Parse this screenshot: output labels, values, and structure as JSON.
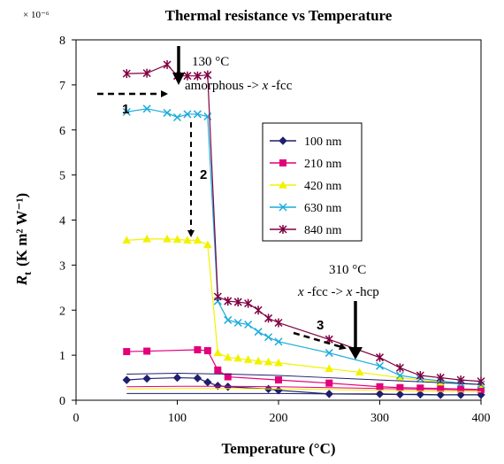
{
  "chart_data": {
    "type": "line",
    "title": "Thermal resistance vs Temperature",
    "xlabel": "Temperature (°C)",
    "ylabel_main": "R",
    "ylabel_sub": "t",
    "ylabel_unit": "(K m² W⁻¹)",
    "y_multiplier": "× 10⁻⁶",
    "xlim": [
      0,
      400
    ],
    "ylim": [
      0,
      8
    ],
    "xticks": [
      0,
      100,
      200,
      300,
      400
    ],
    "yticks": [
      0,
      1,
      2,
      3,
      4,
      5,
      6,
      7,
      8
    ],
    "grid": false,
    "legend_position": "center-right",
    "series": [
      {
        "name": "100 nm",
        "color": "#1f1f6e",
        "marker": "diamond",
        "x": [
          50,
          70,
          100,
          120,
          130,
          140,
          150,
          190,
          200,
          250,
          300,
          320,
          340,
          360,
          380,
          400
        ],
        "y": [
          0.45,
          0.48,
          0.5,
          0.49,
          0.4,
          0.32,
          0.3,
          0.25,
          0.22,
          0.14,
          0.14,
          0.13,
          0.13,
          0.12,
          0.12,
          0.12
        ]
      },
      {
        "name": "210 nm",
        "color": "#e2007a",
        "marker": "square",
        "x": [
          50,
          70,
          120,
          130,
          140,
          150,
          200,
          250,
          300,
          320,
          340,
          360,
          380,
          400
        ],
        "y": [
          1.08,
          1.09,
          1.12,
          1.1,
          0.67,
          0.52,
          0.45,
          0.38,
          0.3,
          0.28,
          0.27,
          0.26,
          0.25,
          0.24
        ]
      },
      {
        "name": "420 nm",
        "color": "#f2f200",
        "marker": "triangle",
        "x": [
          50,
          70,
          90,
          100,
          110,
          120,
          130,
          140,
          150,
          160,
          170,
          180,
          190,
          200,
          250,
          280,
          320,
          360,
          400
        ],
        "y": [
          3.55,
          3.58,
          3.58,
          3.57,
          3.55,
          3.55,
          3.45,
          1.05,
          0.95,
          0.93,
          0.9,
          0.87,
          0.85,
          0.83,
          0.7,
          0.62,
          0.5,
          0.4,
          0.35
        ]
      },
      {
        "name": "630 nm",
        "color": "#1cacdc",
        "marker": "x",
        "x": [
          50,
          70,
          90,
          100,
          110,
          120,
          130,
          140,
          150,
          160,
          170,
          180,
          190,
          200,
          250,
          300,
          320,
          340,
          360,
          380,
          400
        ],
        "y": [
          6.4,
          6.47,
          6.38,
          6.28,
          6.35,
          6.35,
          6.3,
          2.2,
          1.78,
          1.72,
          1.68,
          1.52,
          1.4,
          1.3,
          1.05,
          0.76,
          0.55,
          0.48,
          0.43,
          0.38,
          0.35
        ]
      },
      {
        "name": "840 nm",
        "color": "#800040",
        "marker": "star",
        "x": [
          50,
          70,
          90,
          100,
          110,
          120,
          130,
          140,
          150,
          160,
          170,
          180,
          190,
          200,
          250,
          300,
          320,
          340,
          360,
          380,
          400
        ],
        "y": [
          7.25,
          7.26,
          7.45,
          7.2,
          7.2,
          7.2,
          7.22,
          2.3,
          2.2,
          2.18,
          2.15,
          2.0,
          1.82,
          1.72,
          1.35,
          0.95,
          0.72,
          0.55,
          0.5,
          0.45,
          0.42
        ]
      },
      {
        "name": "",
        "color": "#1f1f6e",
        "marker": "none",
        "x": [
          50,
          100,
          150,
          200,
          250,
          300,
          350,
          400
        ],
        "y": [
          0.58,
          0.6,
          0.58,
          0.55,
          0.5,
          0.45,
          0.4,
          0.35
        ]
      },
      {
        "name": "",
        "color": "#e2007a",
        "marker": "none",
        "x": [
          50,
          100,
          150,
          200,
          250,
          300,
          350,
          400
        ],
        "y": [
          0.3,
          0.31,
          0.31,
          0.3,
          0.28,
          0.26,
          0.24,
          0.22
        ]
      },
      {
        "name": "",
        "color": "#f2f200",
        "marker": "none",
        "x": [
          50,
          100,
          150,
          200,
          250,
          300,
          350,
          400
        ],
        "y": [
          0.25,
          0.26,
          0.26,
          0.25,
          0.24,
          0.22,
          0.2,
          0.19
        ]
      },
      {
        "name": "",
        "color": "#1f1f6e",
        "marker": "none",
        "x": [
          50,
          100,
          150,
          200,
          250,
          300,
          350,
          400
        ],
        "y": [
          0.15,
          0.15,
          0.15,
          0.15,
          0.14,
          0.13,
          0.12,
          0.12
        ]
      }
    ],
    "annotations": {
      "ann130_temp": "130 °C",
      "ann130_a": "amorphous -> ",
      "ann130_b": "x",
      "ann130_c": " -fcc",
      "ann310_temp": "310 °C",
      "ann310_a": "x",
      "ann310_b": " -fcc -> ",
      "ann310_c": "x",
      "ann310_d": " -hcp",
      "label1": "1",
      "label2": "2",
      "label3": "3"
    }
  }
}
